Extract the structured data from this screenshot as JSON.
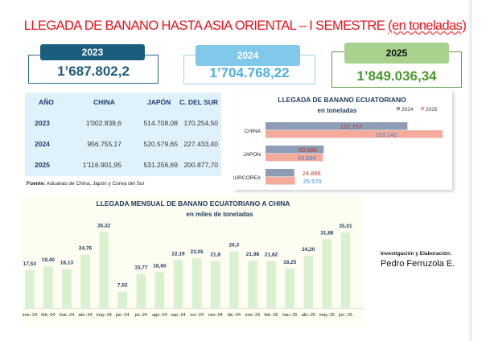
{
  "header": {
    "title_main": "LLEGADA DE BANANO HASTA ASIA ORIENTAL – I SEMESTRE",
    "title_sub": "(en toneladas)"
  },
  "cards": [
    {
      "year": "2023",
      "value": "1’687.802,2",
      "tab_color": "#1a5e7e",
      "border_color": "#2d6a88",
      "value_color": "#1d5b7a"
    },
    {
      "year": "2024",
      "value": "1’704.768,22",
      "tab_color": "#80c9ea",
      "border_color": "#9fd6ef",
      "value_color": "#4cb0df"
    },
    {
      "year": "2025",
      "value": "1’849.036,34",
      "tab_color": "#a9d18e",
      "border_color": "#5d9c45",
      "value_color": "#4c9a2e"
    }
  ],
  "table": {
    "headers": [
      "AÑO",
      "CHINA",
      "JAPÓN",
      "C. DEL SUR"
    ],
    "rows": [
      [
        "2023",
        "1'002.839,6",
        "514.708,08",
        "170.254,50"
      ],
      [
        "2024",
        "956.755,17",
        "520.579,65",
        "227.433,40"
      ],
      [
        "2025",
        "1'116.901,95",
        "531.256,69",
        "200.877,70"
      ]
    ]
  },
  "source": {
    "label": "Fuente:",
    "text": " Aduanas de China, Japón y Corea del Sur"
  },
  "credit": {
    "label": "Investigación y Elaboración:",
    "name": "Pedro Ferruzola E."
  },
  "chart_data": [
    {
      "type": "bar",
      "orientation": "horizontal",
      "title": "LLEGADA DE BANANO ECUATORIANO",
      "subtitle": "en toneladas",
      "legend_position": "top-right",
      "categories": [
        "CHINA",
        "JAPON",
        "SURCOREA"
      ],
      "categories_display": [
        "CHINA",
        "JAPON",
        "SURCOREA"
      ],
      "series": [
        {
          "name": "2024",
          "values": [
            122757,
            50388,
            24866
          ],
          "labels": [
            "122.757",
            "50.388",
            "24.866"
          ],
          "color": "#8c9db5",
          "label_color": "#c0392b"
        },
        {
          "name": "2025",
          "values": [
            153142,
            49594,
            25570
          ],
          "labels": [
            "153.142",
            "49.594",
            "25.570"
          ],
          "color": "#f4ab9c",
          "label_color": "#3a86c8"
        }
      ]
    },
    {
      "type": "bar",
      "title": "LLEGADA MENSUAL DE BANANO ECUATORIANO A CHINA",
      "subtitle": "en miles de toneladas",
      "categories": [
        "ene.-24",
        "feb.-24",
        "mar.-24",
        "abr.-24",
        "may.-24",
        "jun.-24",
        "jul.-24",
        "ago.-24",
        "sep.-24",
        "oct.-24",
        "nov.-24",
        "dic.-24",
        "ene.-25",
        "feb.-25",
        "mar.-25",
        "abr.-25",
        "may.-25",
        "jun.-25"
      ],
      "values": [
        17.53,
        19.4,
        18.13,
        24.76,
        35.32,
        7.62,
        15.77,
        16.6,
        22.19,
        23.05,
        21.8,
        26.3,
        21.98,
        21.82,
        18.25,
        24.2,
        31.88,
        35.01
      ],
      "labels": [
        "17,53",
        "19,40",
        "18,13",
        "24,76",
        "35,32",
        "7,62",
        "15,77",
        "16,60",
        "22,19",
        "23,05",
        "21,8",
        "26,3",
        "21,98",
        "21,82",
        "18,25",
        "24,20",
        "31,88",
        "35,01"
      ],
      "bar_color": "#d8f1cf",
      "label_color": "#1f3b5c"
    }
  ]
}
